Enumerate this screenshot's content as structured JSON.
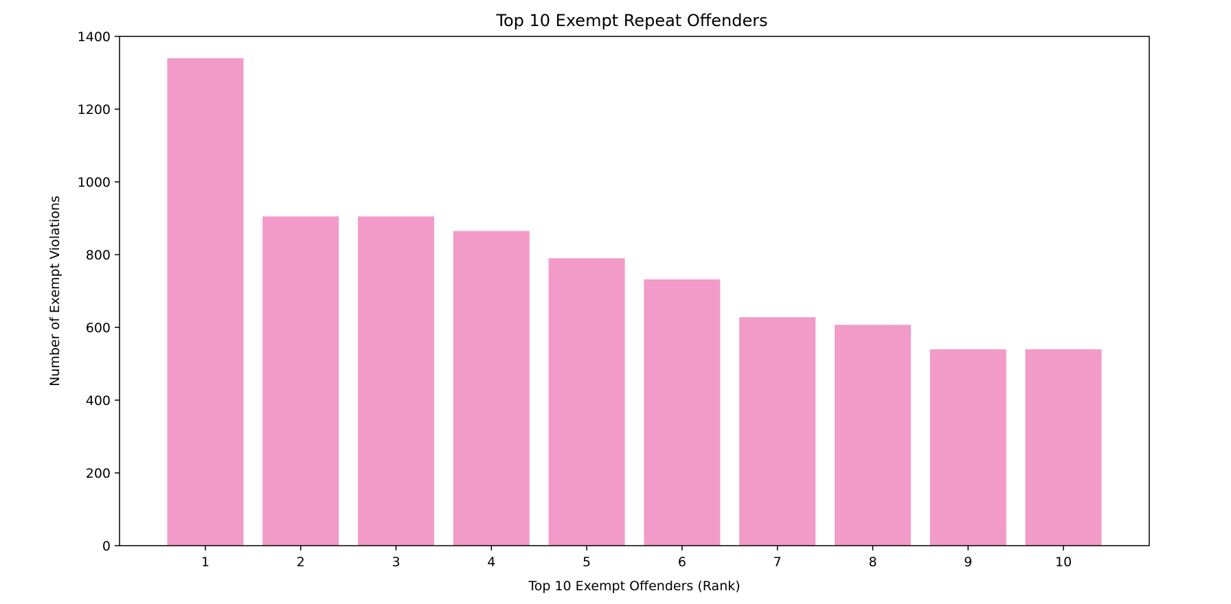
{
  "chart_data": {
    "type": "bar",
    "title": "Top 10 Exempt Repeat Offenders",
    "xlabel": "Top 10 Exempt Offenders (Rank)",
    "ylabel": "Number of Exempt Violations",
    "categories": [
      "1",
      "2",
      "3",
      "4",
      "5",
      "6",
      "7",
      "8",
      "9",
      "10"
    ],
    "values": [
      1340,
      905,
      905,
      865,
      790,
      732,
      628,
      607,
      540,
      540
    ],
    "ylim": [
      0,
      1400
    ],
    "yticks": [
      0,
      200,
      400,
      600,
      800,
      1000,
      1200,
      1400
    ],
    "bar_color": "#f29bc8",
    "grid": false,
    "legend": "none"
  }
}
